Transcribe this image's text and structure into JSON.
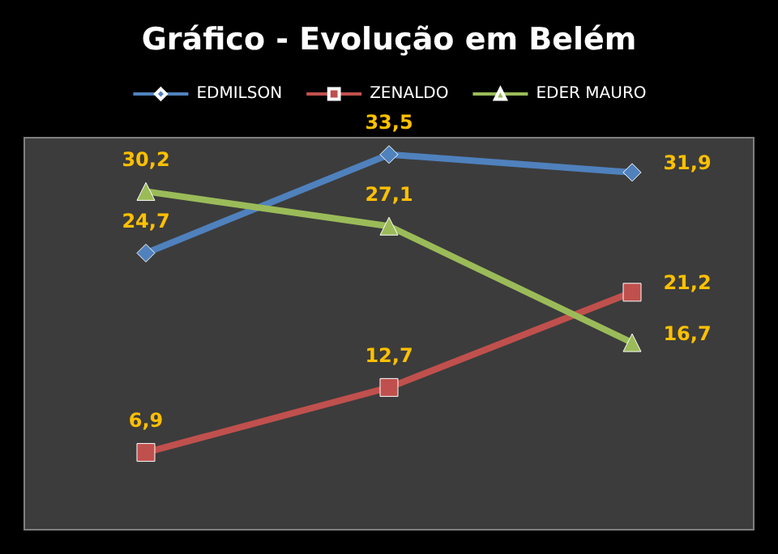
{
  "chart_data": {
    "type": "line",
    "title": "Gráfico - Evolução em Belém",
    "categories": [
      null,
      null,
      null
    ],
    "series": [
      {
        "name": "EDMILSON",
        "color": "#4f81bd",
        "marker": "diamond",
        "values": [
          24.7,
          33.5,
          31.9
        ],
        "value_labels": [
          "24,7",
          "33,5",
          "31,9"
        ]
      },
      {
        "name": "ZENALDO",
        "color": "#c0504d",
        "marker": "square",
        "values": [
          6.9,
          12.7,
          21.2
        ],
        "value_labels": [
          "6,9",
          "12,7",
          "21,2"
        ]
      },
      {
        "name": "EDER MAURO",
        "color": "#9bbb59",
        "marker": "triangle",
        "values": [
          30.2,
          27.1,
          16.7
        ],
        "value_labels": [
          "30,2",
          "27,1",
          "16,7"
        ]
      }
    ],
    "legend": "top",
    "grid": false
  }
}
